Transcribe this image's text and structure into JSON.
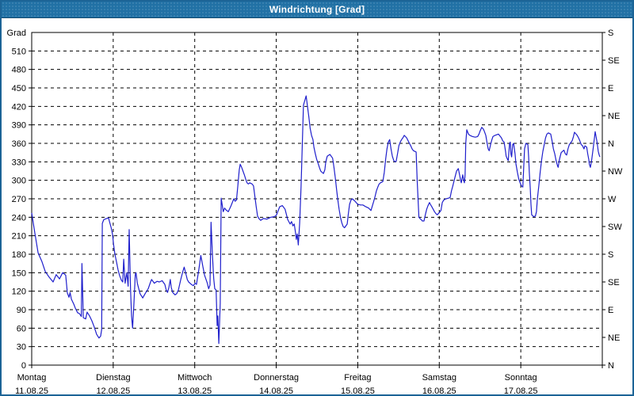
{
  "window": {
    "title": "Windrichtung [Grad]"
  },
  "colors": {
    "titlebar": "#2171a5",
    "window_border": "#1c6496",
    "line": "#1f1fcc",
    "grid": "#000000",
    "text": "#000000",
    "title_text": "#ffffff",
    "background": "#ffffff"
  },
  "chart_data": {
    "type": "line",
    "title": "Windrichtung [Grad]",
    "ylabel": "Grad",
    "ylim": [
      0,
      540
    ],
    "y_tick_step": 30,
    "y_ticks": [
      0,
      30,
      60,
      90,
      120,
      150,
      180,
      210,
      240,
      270,
      300,
      330,
      360,
      390,
      420,
      450,
      480,
      510
    ],
    "right_axis_step": 45,
    "right_axis_labels_bottom_to_top": [
      "N",
      "NE",
      "E",
      "SE",
      "S",
      "SW",
      "W",
      "NW",
      "N",
      "NE",
      "E",
      "SE",
      "S"
    ],
    "grid": "dashed",
    "legend_position": "none",
    "x_unit": "hours since start of 11.08.25",
    "xlim": [
      0,
      168
    ],
    "days": [
      {
        "name": "Montag",
        "date": "11.08.25"
      },
      {
        "name": "Dienstag",
        "date": "12.08.25"
      },
      {
        "name": "Mittwoch",
        "date": "13.08.25"
      },
      {
        "name": "Donnerstag",
        "date": "14.08.25"
      },
      {
        "name": "Freitag",
        "date": "15.08.25"
      },
      {
        "name": "Samstag",
        "date": "16.08.25"
      },
      {
        "name": "Sonntag",
        "date": "17.08.25"
      }
    ],
    "points": [
      [
        0,
        247
      ],
      [
        0.9,
        215
      ],
      [
        1.9,
        182
      ],
      [
        3,
        168
      ],
      [
        4,
        152
      ],
      [
        5.1,
        143
      ],
      [
        6.3,
        135
      ],
      [
        7.2,
        147
      ],
      [
        8.2,
        140
      ],
      [
        9.1,
        150
      ],
      [
        10,
        146
      ],
      [
        10.5,
        117
      ],
      [
        11,
        110
      ],
      [
        11.3,
        118
      ],
      [
        11.7,
        107
      ],
      [
        12.4,
        99
      ],
      [
        12.8,
        93
      ],
      [
        13.5,
        85
      ],
      [
        14,
        84
      ],
      [
        14.6,
        79
      ],
      [
        14.8,
        165
      ],
      [
        15.2,
        77
      ],
      [
        15.9,
        75
      ],
      [
        16.3,
        86
      ],
      [
        17,
        80
      ],
      [
        17.7,
        72
      ],
      [
        18.4,
        62
      ],
      [
        19.1,
        50
      ],
      [
        19.8,
        44
      ],
      [
        20.3,
        47
      ],
      [
        20.6,
        58
      ],
      [
        20.8,
        230
      ],
      [
        21.2,
        236
      ],
      [
        22,
        238
      ],
      [
        22.6,
        239
      ],
      [
        23.1,
        229
      ],
      [
        23.4,
        223
      ],
      [
        23.8,
        212
      ],
      [
        24.1,
        196
      ],
      [
        24.5,
        180
      ],
      [
        25,
        167
      ],
      [
        25.4,
        155
      ],
      [
        25.9,
        145
      ],
      [
        26.4,
        138
      ],
      [
        26.8,
        135
      ],
      [
        27.1,
        172
      ],
      [
        27.5,
        133
      ],
      [
        28,
        150
      ],
      [
        28.4,
        128
      ],
      [
        28.7,
        220
      ],
      [
        29.1,
        124
      ],
      [
        29.4,
        80
      ],
      [
        29.7,
        60
      ],
      [
        30.1,
        100
      ],
      [
        30.5,
        147
      ],
      [
        30.7,
        150
      ],
      [
        31.1,
        133
      ],
      [
        31.9,
        116
      ],
      [
        32.7,
        109
      ],
      [
        33.4,
        116
      ],
      [
        34.3,
        124
      ],
      [
        35,
        135
      ],
      [
        35.3,
        139
      ],
      [
        36.1,
        133
      ],
      [
        36.9,
        136
      ],
      [
        37.6,
        135
      ],
      [
        38.4,
        137
      ],
      [
        39.2,
        131
      ],
      [
        39.6,
        122
      ],
      [
        40,
        118
      ],
      [
        40.4,
        126
      ],
      [
        40.8,
        139
      ],
      [
        41.1,
        126
      ],
      [
        41.5,
        118
      ],
      [
        42.2,
        114
      ],
      [
        42.7,
        116
      ],
      [
        43.2,
        122
      ],
      [
        43.9,
        139
      ],
      [
        44.5,
        152
      ],
      [
        44.9,
        159
      ],
      [
        45.4,
        148
      ],
      [
        45.8,
        139
      ],
      [
        46.2,
        135
      ],
      [
        47,
        131
      ],
      [
        47.6,
        129
      ],
      [
        48.1,
        133
      ],
      [
        48.5,
        131
      ],
      [
        49.2,
        155
      ],
      [
        49.8,
        178
      ],
      [
        50.4,
        160
      ],
      [
        50.9,
        146
      ],
      [
        51.7,
        133
      ],
      [
        52.1,
        124
      ],
      [
        52.5,
        130
      ],
      [
        52.8,
        232
      ],
      [
        53.2,
        180
      ],
      [
        53.6,
        140
      ],
      [
        53.9,
        124
      ],
      [
        54.3,
        122
      ],
      [
        54.6,
        64
      ],
      [
        54.8,
        80
      ],
      [
        55.1,
        35
      ],
      [
        55.5,
        100
      ],
      [
        55.8,
        271
      ],
      [
        56.4,
        249
      ],
      [
        56.8,
        255
      ],
      [
        57.2,
        252
      ],
      [
        57.9,
        249
      ],
      [
        58.7,
        259
      ],
      [
        59.5,
        270
      ],
      [
        59.9,
        266
      ],
      [
        60.3,
        268
      ],
      [
        60.7,
        291
      ],
      [
        61.1,
        317
      ],
      [
        61.4,
        326
      ],
      [
        61.8,
        321
      ],
      [
        62.2,
        315
      ],
      [
        62.6,
        309
      ],
      [
        63,
        302
      ],
      [
        63.4,
        296
      ],
      [
        63.8,
        294
      ],
      [
        64.2,
        296
      ],
      [
        64.9,
        294
      ],
      [
        65.3,
        291
      ],
      [
        65.7,
        274
      ],
      [
        66.1,
        257
      ],
      [
        66.5,
        242
      ],
      [
        66.9,
        238
      ],
      [
        67.4,
        235
      ],
      [
        68.2,
        238
      ],
      [
        69.2,
        237
      ],
      [
        70.4,
        240
      ],
      [
        71.4,
        241
      ],
      [
        72,
        243
      ],
      [
        73,
        257
      ],
      [
        73.8,
        259
      ],
      [
        74.6,
        253
      ],
      [
        75.4,
        236
      ],
      [
        76.1,
        229
      ],
      [
        76.5,
        233
      ],
      [
        76.9,
        226
      ],
      [
        77.3,
        229
      ],
      [
        77.7,
        214
      ],
      [
        77.9,
        204
      ],
      [
        78.2,
        213
      ],
      [
        78.5,
        195
      ],
      [
        78.9,
        230
      ],
      [
        79.3,
        290
      ],
      [
        80,
        422
      ],
      [
        80.8,
        437
      ],
      [
        81.6,
        403
      ],
      [
        82,
        384
      ],
      [
        82.4,
        373
      ],
      [
        82.8,
        366
      ],
      [
        83.1,
        354
      ],
      [
        83.5,
        343
      ],
      [
        83.9,
        334
      ],
      [
        84.3,
        328
      ],
      [
        84.7,
        321
      ],
      [
        85.1,
        315
      ],
      [
        85.5,
        313
      ],
      [
        85.9,
        311
      ],
      [
        86.3,
        317
      ],
      [
        86.6,
        330
      ],
      [
        87,
        339
      ],
      [
        87.8,
        342
      ],
      [
        88.6,
        336
      ],
      [
        89,
        321
      ],
      [
        89.4,
        304
      ],
      [
        89.8,
        283
      ],
      [
        90.1,
        270
      ],
      [
        90.5,
        253
      ],
      [
        90.9,
        240
      ],
      [
        91.3,
        231
      ],
      [
        91.7,
        225
      ],
      [
        92.1,
        223
      ],
      [
        92.9,
        229
      ],
      [
        93.2,
        244
      ],
      [
        93.6,
        261
      ],
      [
        94,
        268
      ],
      [
        94.4,
        270
      ],
      [
        95.2,
        266
      ],
      [
        96,
        261
      ],
      [
        96.8,
        260
      ],
      [
        97.5,
        260
      ],
      [
        98.4,
        257
      ],
      [
        99.2,
        255
      ],
      [
        99.9,
        251
      ],
      [
        100.7,
        266
      ],
      [
        101.1,
        274
      ],
      [
        101.5,
        283
      ],
      [
        101.9,
        289
      ],
      [
        102.3,
        294
      ],
      [
        102.7,
        296
      ],
      [
        103.4,
        298
      ],
      [
        103.8,
        313
      ],
      [
        104.2,
        334
      ],
      [
        104.6,
        351
      ],
      [
        105,
        362
      ],
      [
        105.4,
        366
      ],
      [
        105.8,
        351
      ],
      [
        106.2,
        339
      ],
      [
        106.6,
        332
      ],
      [
        107,
        330
      ],
      [
        107.3,
        331
      ],
      [
        107.7,
        343
      ],
      [
        108.1,
        356
      ],
      [
        108.5,
        362
      ],
      [
        108.9,
        366
      ],
      [
        109.3,
        369
      ],
      [
        109.7,
        373
      ],
      [
        110.4,
        369
      ],
      [
        111.2,
        360
      ],
      [
        111.6,
        356
      ],
      [
        112,
        351
      ],
      [
        112.4,
        348
      ],
      [
        112.8,
        347
      ],
      [
        113.2,
        346
      ],
      [
        113.5,
        300
      ],
      [
        114,
        240
      ],
      [
        114.3,
        238
      ],
      [
        114.7,
        236
      ],
      [
        115,
        234
      ],
      [
        115.5,
        234
      ],
      [
        115.9,
        244
      ],
      [
        116.3,
        253
      ],
      [
        116.7,
        259
      ],
      [
        117.1,
        264
      ],
      [
        117.4,
        261
      ],
      [
        117.8,
        257
      ],
      [
        118.2,
        253
      ],
      [
        118.6,
        249
      ],
      [
        119,
        246
      ],
      [
        119.4,
        244
      ],
      [
        119.9,
        247
      ],
      [
        120.5,
        251
      ],
      [
        120.9,
        264
      ],
      [
        121.3,
        268
      ],
      [
        122,
        270
      ],
      [
        122.7,
        271
      ],
      [
        123.2,
        272
      ],
      [
        123.6,
        283
      ],
      [
        124,
        291
      ],
      [
        124.4,
        300
      ],
      [
        124.8,
        309
      ],
      [
        125.1,
        315
      ],
      [
        125.6,
        319
      ],
      [
        125.9,
        311
      ],
      [
        126.3,
        300
      ],
      [
        126.5,
        296
      ],
      [
        126.9,
        309
      ],
      [
        127.2,
        300
      ],
      [
        127.4,
        296
      ],
      [
        127.6,
        310
      ],
      [
        127.8,
        360
      ],
      [
        128.1,
        382
      ],
      [
        128.6,
        375
      ],
      [
        129,
        373
      ],
      [
        129.8,
        371
      ],
      [
        130.6,
        370
      ],
      [
        131.3,
        371
      ],
      [
        131.7,
        375
      ],
      [
        132.1,
        381
      ],
      [
        132.5,
        386
      ],
      [
        133,
        383
      ],
      [
        133.3,
        379
      ],
      [
        133.7,
        373
      ],
      [
        134.1,
        360
      ],
      [
        134.4,
        351
      ],
      [
        134.7,
        348
      ],
      [
        135.1,
        358
      ],
      [
        135.5,
        366
      ],
      [
        135.8,
        371
      ],
      [
        136.4,
        373
      ],
      [
        137.4,
        375
      ],
      [
        138.3,
        369
      ],
      [
        138.7,
        364
      ],
      [
        139.1,
        362
      ],
      [
        139.5,
        347
      ],
      [
        139.7,
        339
      ],
      [
        140.1,
        334
      ],
      [
        140.3,
        332
      ],
      [
        140.7,
        360
      ],
      [
        140.9,
        362
      ],
      [
        141.1,
        343
      ],
      [
        141.3,
        338
      ],
      [
        141.6,
        358
      ],
      [
        141.9,
        360
      ],
      [
        142.3,
        343
      ],
      [
        142.6,
        326
      ],
      [
        143,
        313
      ],
      [
        143.4,
        302
      ],
      [
        143.8,
        296
      ],
      [
        144.2,
        291
      ],
      [
        144.6,
        289
      ],
      [
        145.1,
        351
      ],
      [
        145.5,
        360
      ],
      [
        146.1,
        358
      ],
      [
        146.3,
        339
      ],
      [
        146.5,
        313
      ],
      [
        146.8,
        287
      ],
      [
        147,
        261
      ],
      [
        147.2,
        244
      ],
      [
        147.8,
        241
      ],
      [
        148.3,
        242
      ],
      [
        148.6,
        249
      ],
      [
        148.9,
        270
      ],
      [
        149.3,
        291
      ],
      [
        149.7,
        313
      ],
      [
        150.1,
        332
      ],
      [
        150.5,
        347
      ],
      [
        150.9,
        358
      ],
      [
        151.3,
        369
      ],
      [
        151.7,
        375
      ],
      [
        152.1,
        377
      ],
      [
        152.8,
        375
      ],
      [
        153.2,
        364
      ],
      [
        153.6,
        351
      ],
      [
        154,
        343
      ],
      [
        154.4,
        332
      ],
      [
        154.8,
        324
      ],
      [
        155,
        321
      ],
      [
        155.3,
        332
      ],
      [
        155.6,
        339
      ],
      [
        155.9,
        345
      ],
      [
        156.3,
        347
      ],
      [
        156.7,
        349
      ],
      [
        157.1,
        343
      ],
      [
        157.5,
        341
      ],
      [
        157.9,
        351
      ],
      [
        158.3,
        358
      ],
      [
        158.7,
        361
      ],
      [
        159.1,
        364
      ],
      [
        159.5,
        371
      ],
      [
        159.8,
        378
      ],
      [
        160.6,
        373
      ],
      [
        161,
        369
      ],
      [
        161.4,
        364
      ],
      [
        161.8,
        358
      ],
      [
        162.2,
        356
      ],
      [
        162.6,
        351
      ],
      [
        162.9,
        356
      ],
      [
        163.4,
        354
      ],
      [
        163.7,
        343
      ],
      [
        164,
        334
      ],
      [
        164.2,
        326
      ],
      [
        164.5,
        321
      ],
      [
        164.9,
        334
      ],
      [
        165.3,
        351
      ],
      [
        165.7,
        369
      ],
      [
        165.9,
        379
      ],
      [
        166.4,
        364
      ],
      [
        166.6,
        356
      ],
      [
        166.8,
        347
      ],
      [
        167.1,
        341
      ],
      [
        167.3,
        338
      ]
    ]
  }
}
